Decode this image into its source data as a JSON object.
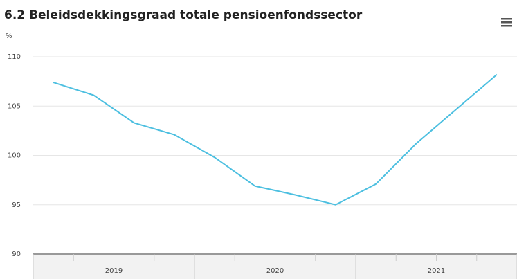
{
  "chart_data": {
    "type": "line",
    "title": "6.2 Beleidsdekkingsgraad totale pensioenfondssector",
    "y_unit": "%",
    "categories": [
      null,
      null,
      null,
      null,
      null,
      null,
      null,
      null,
      null,
      null,
      null,
      null
    ],
    "groups": [
      "2019",
      "2020",
      "2021"
    ],
    "series": [
      {
        "name": "Beleidsdekkingsgraad",
        "color": "#4cbfe0",
        "values": [
          107.4,
          106.1,
          103.3,
          102.1,
          99.8,
          96.9,
          96.0,
          95.0,
          97.1,
          101.2,
          104.7,
          108.2
        ]
      }
    ],
    "ylim": [
      90,
      110
    ],
    "yticks": [
      90,
      95,
      100,
      105,
      110
    ],
    "grid": true
  }
}
